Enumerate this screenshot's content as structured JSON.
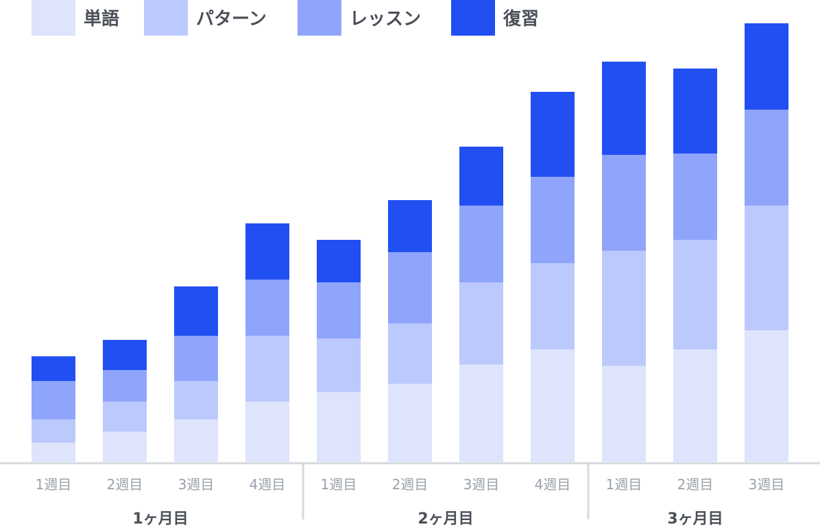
{
  "chart_data": {
    "type": "bar",
    "stacked": true,
    "title": "",
    "xlabel": "",
    "ylabel": "",
    "ylim": [
      0,
      320
    ],
    "grid": false,
    "legend_position": "top-left",
    "categories": [
      "1週目",
      "2週目",
      "3週目",
      "4週目",
      "1週目",
      "2週目",
      "3週目",
      "4週目",
      "1週目",
      "2週目",
      "3週目"
    ],
    "groups": [
      {
        "label": "1ヶ月目",
        "count": 4
      },
      {
        "label": "2ヶ月目",
        "count": 4
      },
      {
        "label": "3ヶ月目",
        "count": 3
      }
    ],
    "series": [
      {
        "name": "単語",
        "color": "#dde4fc",
        "values": [
          14,
          22,
          31,
          44,
          51,
          57,
          71,
          82,
          70,
          82,
          96
        ]
      },
      {
        "name": "パターン",
        "color": "#bcc9fc",
        "values": [
          17,
          22,
          28,
          48,
          39,
          44,
          60,
          63,
          84,
          80,
          91
        ]
      },
      {
        "name": "レッスン",
        "color": "#8fa5fc",
        "values": [
          28,
          23,
          33,
          41,
          41,
          52,
          56,
          63,
          70,
          63,
          70
        ]
      },
      {
        "name": "復習",
        "color": "#224ff2",
        "values": [
          18,
          22,
          36,
          41,
          31,
          38,
          43,
          62,
          68,
          62,
          63
        ]
      }
    ]
  }
}
